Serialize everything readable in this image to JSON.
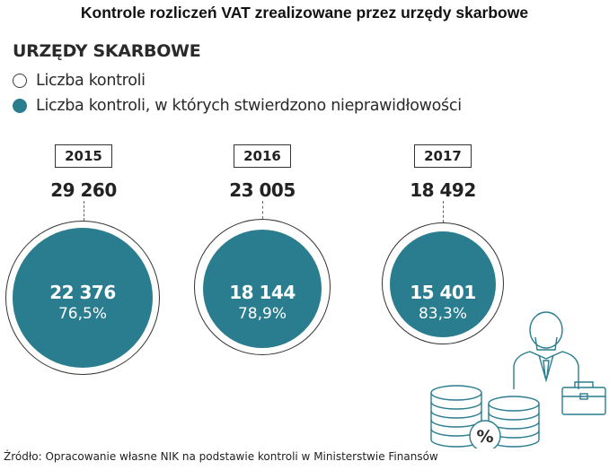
{
  "title": "Kontrole rozliczeń VAT zrealizowane przez urzędy skarbowe",
  "section_label": "URZĘDY SKARBOWE",
  "legend": [
    {
      "label": "Liczba kontroli",
      "style": "outline"
    },
    {
      "label": "Liczba kontroli, w których stwierdzono nieprawidłowości",
      "style": "filled"
    }
  ],
  "colors": {
    "accent": "#2a7d8f",
    "outline": "#333333"
  },
  "chart_data": {
    "type": "bubble-comparison",
    "categories": [
      "2015",
      "2016",
      "2017"
    ],
    "series": [
      {
        "name": "Liczba kontroli",
        "values": [
          29260,
          23005,
          18492
        ]
      },
      {
        "name": "Liczba kontroli, w których stwierdzono nieprawidłowości",
        "values": [
          22376,
          18144,
          15401
        ]
      }
    ],
    "percent_share": [
      76.5,
      78.9,
      83.3
    ],
    "labels": {
      "totals": [
        "29 260",
        "23 005",
        "18 492"
      ],
      "irregular": [
        "22 376",
        "18 144",
        "15 401"
      ],
      "percents": [
        "76,5%",
        "78,9%",
        "83,3%"
      ]
    }
  },
  "illustration": {
    "icons": [
      "person-icon",
      "briefcase-icon",
      "coin-stack-icon",
      "percent-icon"
    ],
    "percent_glyph": "%"
  },
  "source": "Źródło: Opracowanie własne NIK na podstawie kontroli w Ministerstwie Finansów"
}
